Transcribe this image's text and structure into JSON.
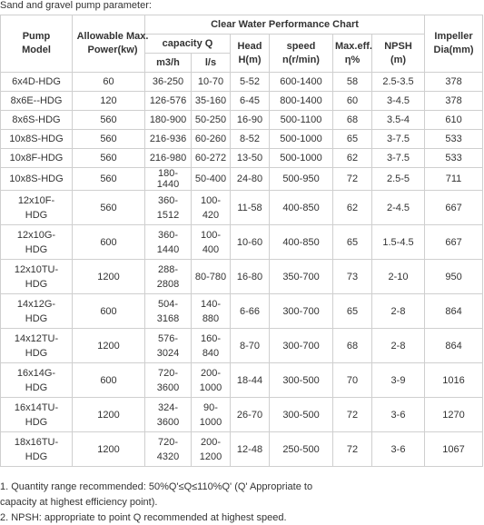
{
  "title": "Sand and gravel pump parameter:",
  "table": {
    "chart_title": "Clear Water Performance Chart",
    "headers": {
      "model": "Pump Model",
      "power": "Allowable Max. Power(kw)",
      "capacity": "capacity Q",
      "m3h": "m3/h",
      "ls": "l/s",
      "head": "Head H(m)",
      "speed": "speed n(r/min)",
      "eff": "Max.eff. η%",
      "npsh": "NPSH (m)",
      "impeller": "Impeller Dia(mm)"
    },
    "rows": [
      [
        "6x4D-HDG",
        60,
        "36-250",
        "10-70",
        "5-52",
        "600-1400",
        58,
        "2.5-3.5",
        378
      ],
      [
        "8x6E--HDG",
        120,
        "126-576",
        "35-160",
        "6-45",
        "800-1400",
        60,
        "3-4.5",
        378
      ],
      [
        "8x6S-HDG",
        560,
        "180-900",
        "50-250",
        "16-90",
        "500-1100",
        68,
        "3.5-4",
        610
      ],
      [
        "10x8S-HDG",
        560,
        "216-936",
        "60-260",
        "8-52",
        "500-1000",
        65,
        "3-7.5",
        533
      ],
      [
        "10x8F-HDG",
        560,
        "216-980",
        "60-272",
        "13-50",
        "500-1000",
        62,
        "3-7.5",
        533
      ],
      [
        "10x8S-HDG",
        560,
        "180-1440",
        "50-400",
        "24-80",
        "500-950",
        72,
        "2.5-5",
        711
      ],
      [
        "12x10F-HDG",
        560,
        "360-1512",
        "100-420",
        "11-58",
        "400-850",
        62,
        "2-4.5",
        667
      ],
      [
        "12x10G-HDG",
        600,
        "360-1440",
        "100-400",
        "10-60",
        "400-850",
        65,
        "1.5-4.5",
        667
      ],
      [
        "12x10TU-HDG",
        1200,
        "288-2808",
        "80-780",
        "16-80",
        "350-700",
        73,
        "2-10",
        950
      ],
      [
        "14x12G-HDG",
        600,
        "504-3168",
        "140-880",
        "6-66",
        "300-700",
        65,
        "2-8",
        864
      ],
      [
        "14x12TU-HDG",
        1200,
        "576-3024",
        "160-840",
        "8-70",
        "300-700",
        68,
        "2-8",
        864
      ],
      [
        "16x14G-HDG",
        600,
        "720-3600",
        "200-1000",
        "18-44",
        "300-500",
        70,
        "3-9",
        1016
      ],
      [
        "16x14TU-HDG",
        1200,
        "324-3600",
        "90-1000",
        "26-70",
        "300-500",
        72,
        "3-6",
        1270
      ],
      [
        "18x16TU-HDG",
        1200,
        "720-4320",
        "200-1200",
        "12-48",
        "250-500",
        72,
        "3-6",
        1067
      ]
    ]
  },
  "notes": [
    "1. Quantity range recommended: 50%Q'≤Q≤110%Q' (Q' Appropriate to capacity at highest efficiency point).",
    "2. NPSH: appropriate to point Q recommended at highest speed."
  ]
}
